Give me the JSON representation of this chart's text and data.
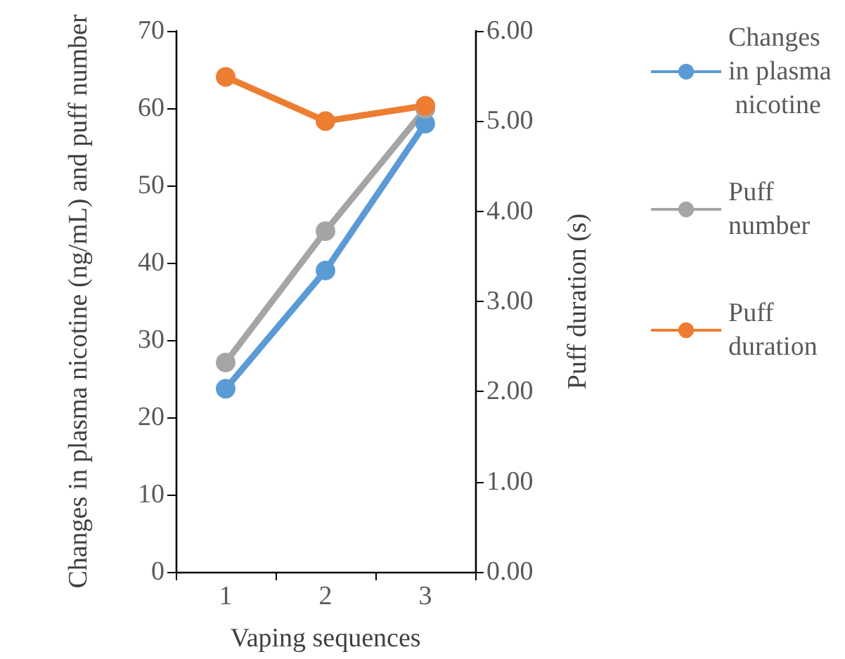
{
  "chart_data": {
    "type": "line",
    "xlabel": "Vaping sequences",
    "ylabel": "Changes in plasma nicotine (ng/mL) and puff number",
    "y2label": "Puff duration (s)",
    "categories": [
      "1",
      "2",
      "3"
    ],
    "series": [
      {
        "name": "Changes in plasma nicotine",
        "color": "#5b9bd5",
        "values": [
          23.7,
          39.0,
          58.0
        ]
      },
      {
        "name": "Puff number",
        "color": "#a5a5a5",
        "values": [
          27.1,
          44.1,
          59.9
        ]
      },
      {
        "name": "Puff duration",
        "color": "#ed7d31",
        "values": [
          5.49,
          5.0,
          5.17
        ],
        "axis": "y2"
      }
    ],
    "ylim": [
      0,
      70
    ],
    "yticks": [
      0,
      10,
      20,
      30,
      40,
      50,
      60,
      70
    ],
    "y2lim": [
      0,
      6
    ],
    "y2ticks": [
      {
        "value": 0,
        "label": "0.00"
      },
      {
        "value": 1,
        "label": "1.00"
      },
      {
        "value": 2,
        "label": "2.00"
      },
      {
        "value": 3,
        "label": "3.00"
      },
      {
        "value": 4,
        "label": "4.00"
      },
      {
        "value": 5,
        "label": "5.00"
      },
      {
        "value": 6,
        "label": "6.00"
      }
    ],
    "grid": false,
    "legend": "right",
    "marker": "circle",
    "line_style": "solid"
  }
}
